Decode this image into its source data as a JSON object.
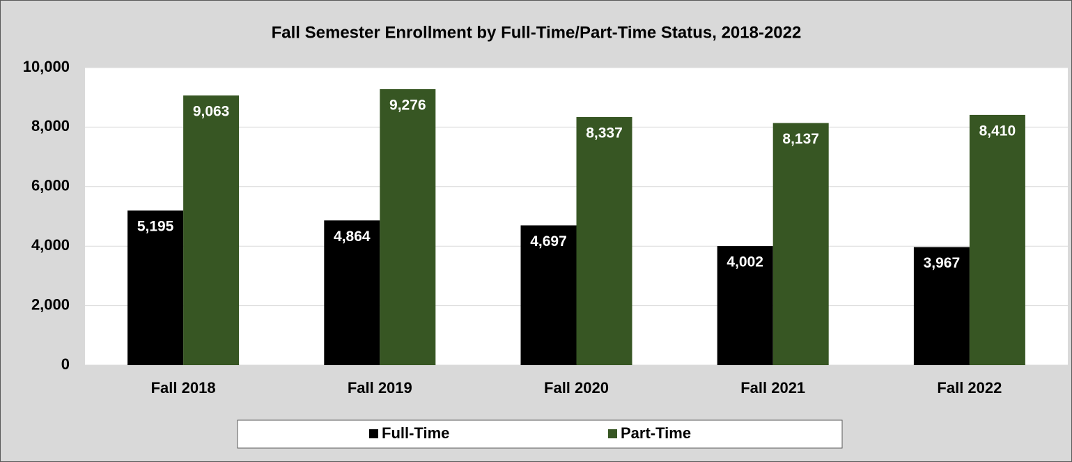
{
  "chart_data": {
    "type": "bar",
    "title": "Fall Semester Enrollment by Full-Time/Part-Time Status, 2018-2022",
    "categories": [
      "Fall 2018",
      "Fall 2019",
      "Fall 2020",
      "Fall 2021",
      "Fall 2022"
    ],
    "series": [
      {
        "name": "Full-Time",
        "color": "#000000",
        "values": [
          5195,
          4864,
          4697,
          4002,
          3967
        ],
        "value_labels": [
          "5,195",
          "4,864",
          "4,697",
          "4,002",
          "3,967"
        ]
      },
      {
        "name": "Part-Time",
        "color": "#375623",
        "values": [
          9063,
          9276,
          8337,
          8137,
          8410
        ],
        "value_labels": [
          "9,063",
          "9,276",
          "8,337",
          "8,137",
          "8,410"
        ]
      }
    ],
    "ylim": [
      0,
      10000
    ],
    "yticks": [
      0,
      {
        "value": 2000,
        "label": "2,000"
      },
      {
        "value": 4000,
        "label": "4,000"
      },
      {
        "value": 6000,
        "label": "6,000"
      },
      {
        "value": 8000,
        "label": "8,000"
      },
      {
        "value": 10000,
        "label": "10,000"
      }
    ],
    "grid": true,
    "legend": "bottom"
  }
}
